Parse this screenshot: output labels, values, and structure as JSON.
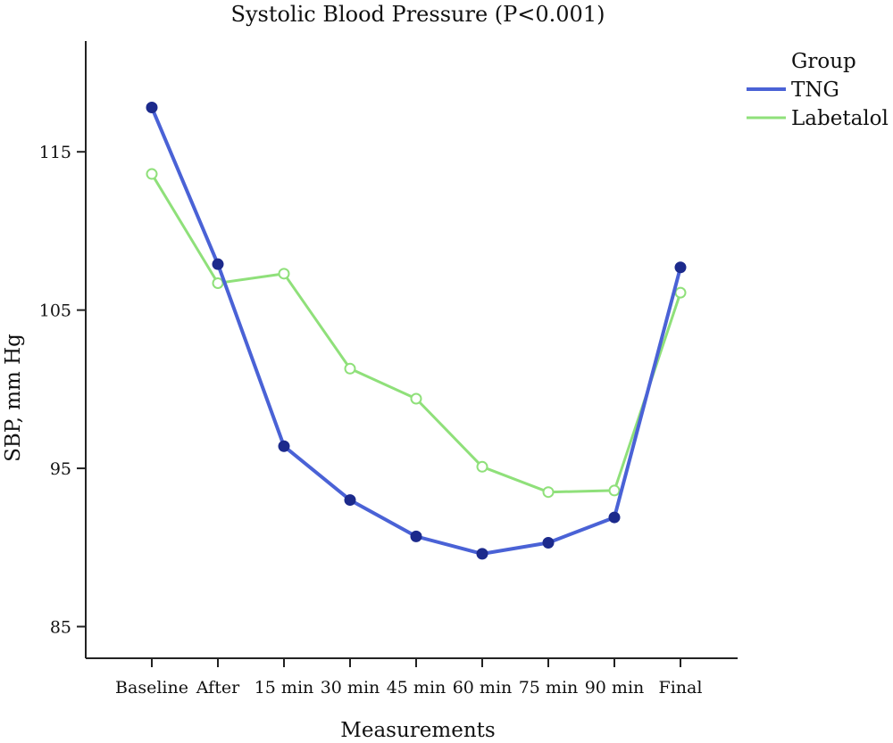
{
  "chart_data": {
    "type": "line",
    "title": "Systolic Blood Pressure (P<0.001)",
    "xlabel": "Measurements",
    "ylabel": "SBP, mm Hg",
    "categories": [
      "Baseline",
      "After",
      "15 min",
      "30 min",
      "45 min",
      "60 min",
      "75 min",
      "90 min",
      "Final"
    ],
    "ylim": [
      83,
      122
    ],
    "yticks": [
      85,
      95,
      105,
      115
    ],
    "grid": false,
    "legend_title": "Group",
    "legend_position": "top-right",
    "series": [
      {
        "name": "TNG",
        "color": "#4a62d6",
        "marker": "filled-circle",
        "values": [
          117.8,
          107.9,
          96.4,
          93.0,
          90.7,
          89.6,
          90.3,
          91.9,
          107.7
        ]
      },
      {
        "name": "Labetalol",
        "color": "#8fe07a",
        "marker": "open-circle",
        "values": [
          113.6,
          106.7,
          107.3,
          101.3,
          99.4,
          95.1,
          93.5,
          93.6,
          106.1
        ]
      }
    ]
  }
}
